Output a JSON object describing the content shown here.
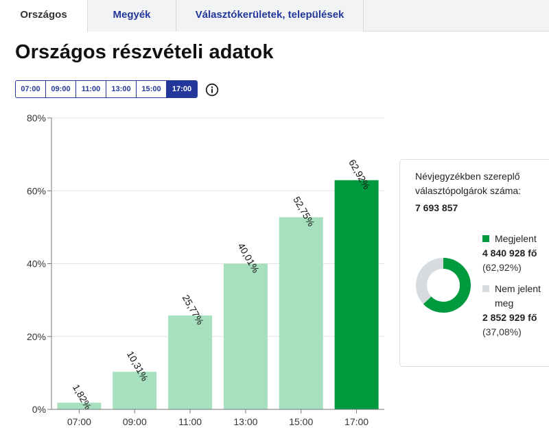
{
  "tabs": [
    {
      "label": "Országos",
      "active": true
    },
    {
      "label": "Megyék",
      "active": false
    },
    {
      "label": "Választókerületek, települések",
      "active": false
    }
  ],
  "page_title": "Országos részvételi adatok",
  "time_options": [
    {
      "label": "07:00",
      "active": false
    },
    {
      "label": "09:00",
      "active": false
    },
    {
      "label": "11:00",
      "active": false
    },
    {
      "label": "13:00",
      "active": false
    },
    {
      "label": "15:00",
      "active": false
    },
    {
      "label": "17:00",
      "active": true
    }
  ],
  "info_icon": "info-icon",
  "chart_data": {
    "type": "bar",
    "categories": [
      "07:00",
      "09:00",
      "11:00",
      "13:00",
      "15:00",
      "17:00"
    ],
    "values": [
      1.82,
      10.31,
      25.77,
      40.01,
      52.75,
      62.92
    ],
    "value_labels": [
      "1,82%",
      "10,31%",
      "25,77%",
      "40,01%",
      "52,75%",
      "62,92%"
    ],
    "ylim": [
      0,
      80
    ],
    "yticks": [
      0,
      20,
      40,
      60,
      80
    ],
    "ytick_labels": [
      "0%",
      "20%",
      "40%",
      "60%",
      "80%"
    ],
    "highlight_index": 5,
    "colors": {
      "bar": "#a6e0bf",
      "highlight": "#009a3e",
      "grid": "#e3e3e3",
      "axis": "#777777"
    },
    "grid": true
  },
  "summary": {
    "title": "Névjegyzékben szereplő választópolgárok száma:",
    "total": "7 693 857",
    "segments": [
      {
        "label": "Megjelent",
        "value": "4 840 928 fő",
        "pct_label": "(62,92%)",
        "pct": 62.92,
        "color": "#009a3e"
      },
      {
        "label": "Nem jelent meg",
        "value": "2 852 929 fő",
        "pct_label": "(37,08%)",
        "pct": 37.08,
        "color": "#d5dbde"
      }
    ]
  }
}
